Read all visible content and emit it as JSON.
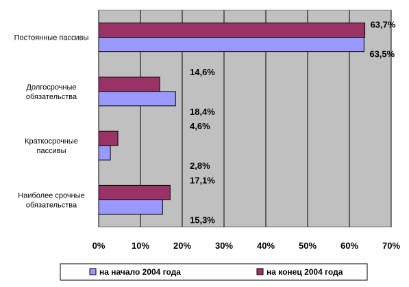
{
  "chart_data": {
    "type": "bar",
    "orientation": "horizontal",
    "categories": [
      [
        "Постоянные пассивы"
      ],
      [
        "Долгосрочные",
        "обязательства"
      ],
      [
        "Краткосрочные",
        "пассивы"
      ],
      [
        "Наиболее срочные",
        "обязательства"
      ]
    ],
    "series": [
      {
        "name": "на начало 2004 года",
        "color": "#9999ff",
        "values": [
          63.5,
          18.4,
          2.8,
          15.3
        ],
        "labels": [
          "63,5%",
          "18,4%",
          "2,8%",
          "15,3%"
        ]
      },
      {
        "name": "на конец 2004 года",
        "color": "#993366",
        "values": [
          63.7,
          14.6,
          4.6,
          17.1
        ],
        "labels": [
          "63,7%",
          "14,6%",
          "4,6%",
          "17,1%"
        ]
      }
    ],
    "xlim": [
      0,
      70
    ],
    "xticks": [
      0,
      10,
      20,
      30,
      40,
      50,
      60,
      70
    ],
    "xtick_labels": [
      "0%",
      "10%",
      "20%",
      "30%",
      "40%",
      "50%",
      "60%",
      "70%"
    ],
    "grid": true,
    "plot_background": "#c0c0c0",
    "legend": "bottom",
    "title": "",
    "xlabel": "",
    "ylabel": ""
  }
}
